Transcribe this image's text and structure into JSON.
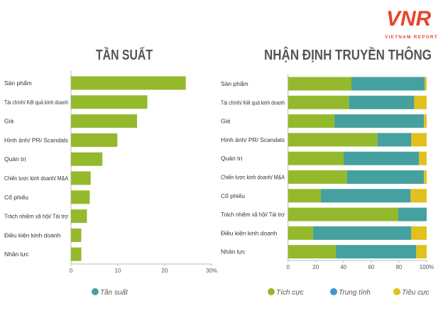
{
  "logo": {
    "mark": "VNR",
    "subtitle": "VIETNAM REPORT",
    "color": "#e8452a"
  },
  "chart_data": [
    {
      "type": "bar",
      "orientation": "horizontal",
      "title": "TẦN SUẤT",
      "categories": [
        "Sản phẩm",
        "Tài chính/ Kết quả kinh doanh",
        "Giá",
        "Hình ảnh/ PR/ Scandals",
        "Quản trị",
        "Chiến lược kinh doanh/ M&A",
        "Cổ phiếu",
        "Trách nhiệm xã hội/ Tài trợ",
        "Điều kiện kinh doanh",
        "Nhân lực"
      ],
      "series": [
        {
          "name": "Tần suất",
          "color": "#94b92d",
          "legend_color": "#45a0a0",
          "values": [
            24.5,
            16.3,
            14.1,
            9.9,
            6.7,
            4.2,
            4.0,
            3.4,
            2.2,
            2.2
          ]
        }
      ],
      "xlim": [
        0,
        30
      ],
      "xticks": [
        "0",
        "10",
        "20",
        "30%"
      ],
      "grid": false,
      "legend": "bottom"
    },
    {
      "type": "bar",
      "orientation": "horizontal",
      "stacked": true,
      "title": "NHẬN ĐỊNH TRUYỀN THÔNG",
      "categories": [
        "Sản phẩm",
        "Tài chính/ Kết quả kinh doanh",
        "Giá",
        "Hình ảnh/ PR/ Scandals",
        "Quản trị",
        "Chiến lược kinh doanh/ M&A",
        "Cổ phiếu",
        "Trách nhiệm xã hội/ Tài trợ",
        "Điều kiện kinh doanh",
        "Nhân lực"
      ],
      "series": [
        {
          "name": "Tích cực",
          "color": "#94b92d",
          "values": [
            45.7,
            44,
            33.5,
            64.5,
            40.1,
            42.5,
            23.7,
            79.5,
            18.1,
            34.5
          ]
        },
        {
          "name": "Trung tính",
          "color": "#45a0a0",
          "legend_color": "#3f95d0",
          "values": [
            52.9,
            47,
            64.5,
            24.4,
            54.4,
            55.5,
            64.7,
            20.5,
            70.8,
            58
          ]
        },
        {
          "name": "Tiêu cực",
          "color": "#e2c11d",
          "values": [
            1.4,
            9,
            2,
            11.1,
            5.5,
            2,
            11.6,
            0,
            11.1,
            7.5
          ]
        }
      ],
      "xlim": [
        0,
        100
      ],
      "xticks": [
        "0",
        "20",
        "40",
        "60",
        "80",
        "100%"
      ],
      "grid": false,
      "legend": "bottom"
    }
  ]
}
